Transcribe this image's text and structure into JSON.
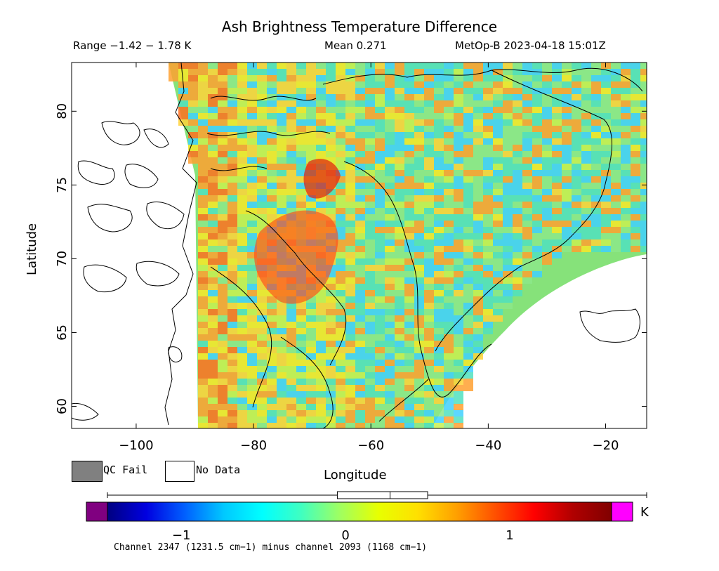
{
  "header": {
    "title": "Ash Brightness Temperature Difference",
    "range": "Range −1.42 − 1.78 K",
    "mean": "Mean 0.271",
    "satellite_time": "MetOp-B 2023-04-18 15:01Z"
  },
  "axes": {
    "xlabel": "Longitude",
    "ylabel": "Latitude",
    "x_range": [
      -111,
      -13
    ],
    "y_range": [
      58.5,
      83.3
    ],
    "x_ticks": [
      -100,
      -80,
      -60,
      -40,
      -20
    ],
    "x_tick_labels": [
      "−100",
      "−80",
      "−60",
      "−40",
      "−20"
    ],
    "y_ticks": [
      60,
      65,
      70,
      75,
      80
    ],
    "y_tick_labels": [
      "60",
      "65",
      "70",
      "75",
      "80"
    ]
  },
  "legend": {
    "qc_fail_label": "QC Fail",
    "qc_fail_color": "#808080",
    "no_data_label": "No Data",
    "no_data_color": "#ffffff"
  },
  "colorbar": {
    "unit": "K",
    "range": [
      -1.45,
      1.62
    ],
    "tick_values": [
      -1,
      0,
      1
    ],
    "tick_labels": [
      "−1",
      "0",
      "1"
    ],
    "under_color": "#800080",
    "over_color": "#ff00ff",
    "stops": [
      "#000080",
      "#0000e0",
      "#0060ff",
      "#00c8ff",
      "#00ffff",
      "#40ffc0",
      "#a0ff60",
      "#e8ff00",
      "#ffe000",
      "#ffa000",
      "#ff5000",
      "#ff0000",
      "#b00000",
      "#800000"
    ],
    "range_marker": [
      -0.05,
      0.5
    ],
    "mean_marker": 0.271
  },
  "map_colors": {
    "swath_base": "#7ce878",
    "swath_warm": "#ffb030",
    "swath_hot": "#e63010",
    "coastline": "#000000"
  },
  "footer": "Channel 2347 (1231.5 cm−1) minus channel 2093 (1168 cm−1)"
}
